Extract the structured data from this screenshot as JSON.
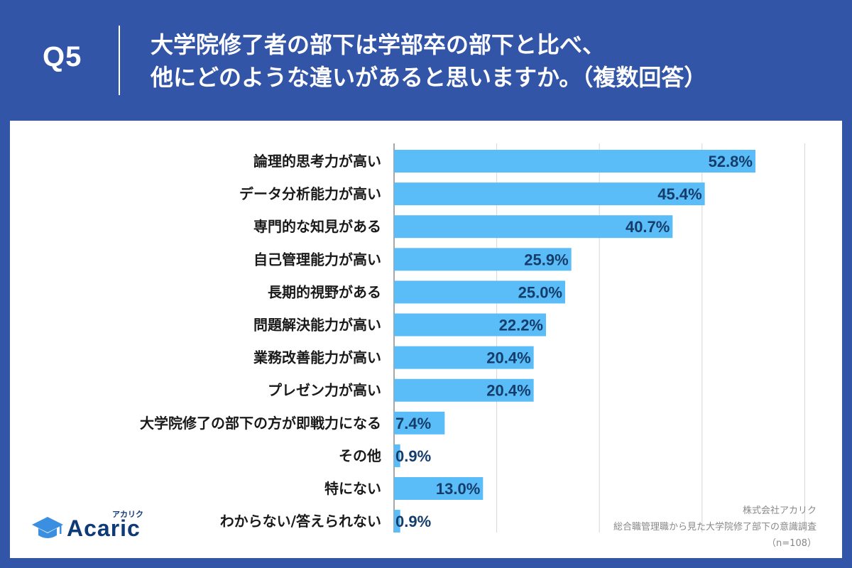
{
  "header": {
    "q_label": "Q5",
    "title_line1": "大学院修了者の部下は学部卒の部下と比べ、",
    "title_line2": "他にどのような違いがあると思いますか。（複数回答）"
  },
  "colors": {
    "background": "#3355a7",
    "bar": "#5bbdf7",
    "value_text": "#153d6b",
    "grid": "#d6d6d6"
  },
  "chart_data": {
    "type": "bar",
    "orientation": "horizontal",
    "categories": [
      "論理的思考力が高い",
      "データ分析能力が高い",
      "専門的な知見がある",
      "自己管理能力が高い",
      "長期的視野がある",
      "問題解決能力が高い",
      "業務改善能力が高い",
      "プレゼン力が高い",
      "大学院修了の部下の方が即戦力になる",
      "その他",
      "特にない",
      "わからない/答えられない"
    ],
    "values": [
      52.8,
      45.4,
      40.7,
      25.9,
      25.0,
      22.2,
      20.4,
      20.4,
      7.4,
      0.9,
      13.0,
      0.9
    ],
    "value_labels": [
      "52.8%",
      "45.4%",
      "40.7%",
      "25.9%",
      "25.0%",
      "22.2%",
      "20.4%",
      "20.4%",
      "7.4%",
      "0.9%",
      "13.0%",
      "0.9%"
    ],
    "xlim": [
      0,
      60
    ],
    "gridlines": [
      0,
      15,
      30,
      45,
      60
    ],
    "grid": true,
    "legend": "none"
  },
  "logo": {
    "name": "Acaric",
    "kana": "アカリク",
    "icon": "graduation-cap-icon"
  },
  "source": {
    "company": "株式会社アカリク",
    "survey": "総合職管理職から見た大学院修了部下の意識調査",
    "sample": "（n=108）"
  }
}
